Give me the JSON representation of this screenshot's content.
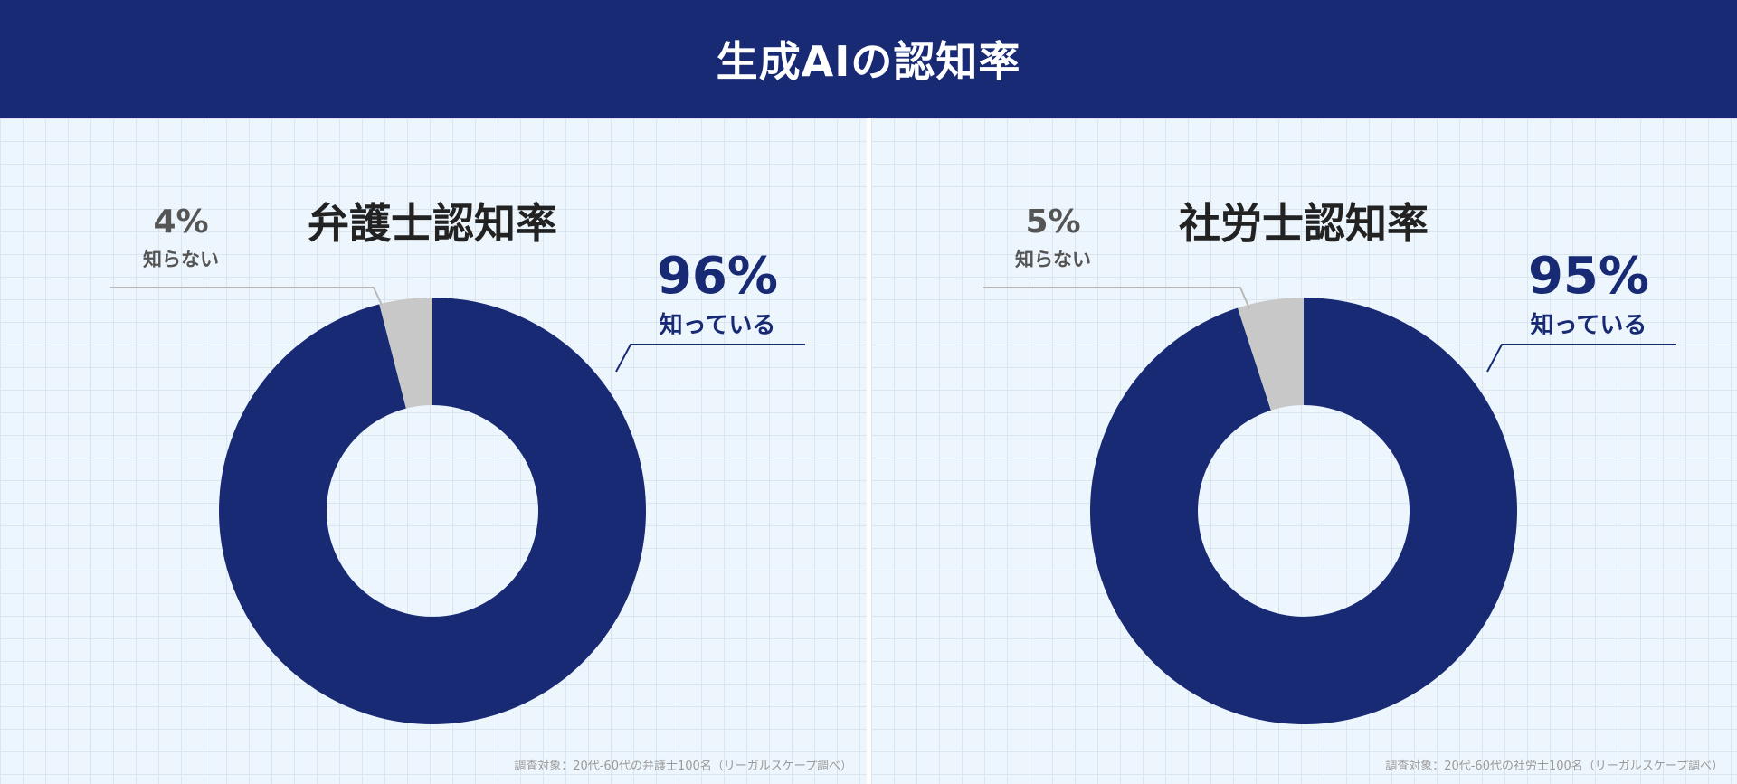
{
  "page": {
    "title": "生成AIの認知率"
  },
  "colors": {
    "header": "#172a73",
    "known": "#172a73",
    "unknown": "#c8c8c8",
    "panel_bg": "#eef6fd"
  },
  "chart_data": [
    {
      "type": "pie",
      "title": "弁護士認知率",
      "labels": [
        "知っている",
        "知らない"
      ],
      "values": [
        96,
        4
      ],
      "value_labels": [
        "96%",
        "4%"
      ],
      "note": "調査対象：20代-60代の弁護士100名（リーガルスケープ調べ）"
    },
    {
      "type": "pie",
      "title": "社労士認知率",
      "labels": [
        "知っている",
        "知らない"
      ],
      "values": [
        95,
        5
      ],
      "value_labels": [
        "95%",
        "5%"
      ],
      "note": "調査対象：20代-60代の社労士100名（リーガルスケープ調べ）"
    }
  ]
}
